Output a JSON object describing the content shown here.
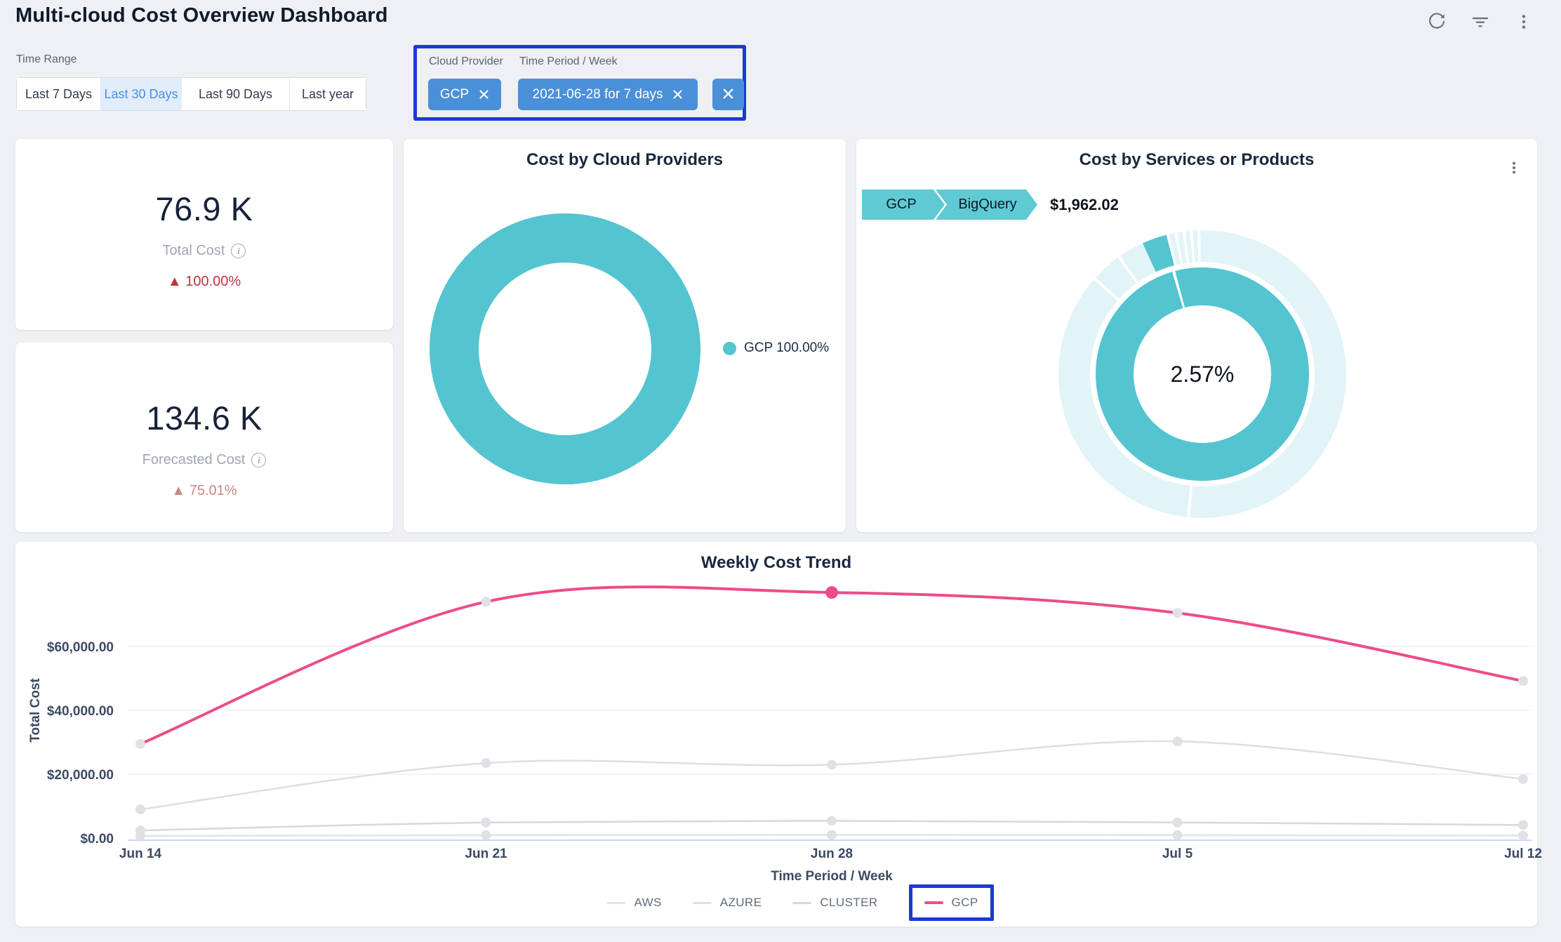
{
  "header": {
    "title": "Multi-cloud Cost Overview Dashboard",
    "actions": [
      "refresh",
      "filter",
      "more"
    ]
  },
  "filters": {
    "time_range": {
      "label": "Time Range",
      "options": [
        "Last 7 Days",
        "Last 30 Days",
        "Last 90 Days",
        "Last year"
      ],
      "selected": "Last 30 Days"
    },
    "cloud_provider": {
      "label": "Cloud Provider",
      "value": "GCP"
    },
    "time_period": {
      "label": "Time Period / Week",
      "value": "2021-06-28 for 7 days"
    }
  },
  "annotations": {
    "color": "#1b3ad6",
    "boxes": [
      "pinned-filters",
      "gcp-legend-item"
    ]
  },
  "kpis": [
    {
      "value": "76.9 K",
      "label": "Total Cost",
      "delta": "▲ 100.00%",
      "direction": "up",
      "delta_color": "#c5303c"
    },
    {
      "value": "134.6 K",
      "label": "Forecasted Cost",
      "delta": "▲ 75.01%",
      "direction": "up",
      "delta_color": "#c8897f"
    }
  ],
  "chart_data": [
    {
      "type": "pie",
      "title": "Cost by Cloud Providers",
      "categories": [
        "GCP"
      ],
      "values": [
        100.0
      ],
      "unit": "%",
      "legend_label": "GCP 100.00%",
      "legend_position": "right",
      "color": "#54c4d0",
      "donut": true
    },
    {
      "type": "pie",
      "variant": "sunburst",
      "title": "Cost by Services or Products",
      "breadcrumb": [
        "GCP",
        "BigQuery"
      ],
      "selected_service": "BigQuery",
      "selected_cost": "$1,962.02",
      "center_label": "2.57%",
      "selected_share_pct": 2.57,
      "colors": {
        "highlight": "#54c4d0",
        "rest": "#e2f4f7",
        "gap": "#ffffff"
      },
      "outer_segments": [
        [
          0,
          185,
          "rest"
        ],
        [
          185,
          186.2,
          "gap"
        ],
        [
          186.2,
          311,
          "rest"
        ],
        [
          311,
          312.2,
          "gap"
        ],
        [
          312.2,
          324,
          "rest"
        ],
        [
          324,
          325.2,
          "gap"
        ],
        [
          325.2,
          335.5,
          "rest"
        ],
        [
          335.5,
          345.5,
          "hl"
        ],
        [
          345.5,
          346.7,
          "gap"
        ],
        [
          346.7,
          348.8,
          "rest"
        ],
        [
          348.8,
          350,
          "gap"
        ],
        [
          350,
          352,
          "rest"
        ],
        [
          352,
          353.2,
          "gap"
        ],
        [
          353.2,
          355,
          "rest"
        ],
        [
          355,
          356.2,
          "gap"
        ],
        [
          356.2,
          358,
          "rest"
        ],
        [
          358,
          359.2,
          "gap"
        ],
        [
          359.2,
          360,
          "rest"
        ]
      ],
      "inner_segments": [
        [
          0,
          343.6,
          "hl"
        ],
        [
          343.6,
          345.2,
          "gap"
        ],
        [
          345.2,
          360,
          "hl"
        ]
      ]
    },
    {
      "type": "line",
      "title": "Weekly Cost Trend",
      "xlabel": "Time Period / Week",
      "ylabel": "Total Cost",
      "categories": [
        "Jun 14",
        "Jun 21",
        "Jun 28",
        "Jul 5",
        "Jul 12"
      ],
      "yticks": [
        "$0.00",
        "$20,000.00",
        "$40,000.00",
        "$60,000.00"
      ],
      "ylim": [
        0,
        80000
      ],
      "grid": true,
      "legend_position": "bottom",
      "series": [
        {
          "name": "AWS",
          "color": "#e2e4e8",
          "width": 2.5,
          "values": [
            700,
            900,
            1000,
            900,
            800
          ]
        },
        {
          "name": "AZURE",
          "color": "#dcdfe3",
          "width": 2.5,
          "values": [
            9000,
            23500,
            23000,
            30300,
            18500
          ]
        },
        {
          "name": "CLUSTER",
          "color": "#d5d8dd",
          "width": 2.5,
          "values": [
            2400,
            4900,
            5400,
            4900,
            4100
          ]
        },
        {
          "name": "GCP",
          "color": "#ec4c8b",
          "width": 4,
          "values": [
            29500,
            74000,
            76900,
            70500,
            49200
          ]
        }
      ],
      "highlight": {
        "series": "GCP",
        "category": "Jun 28"
      },
      "dot_color": "#dfe1e6"
    }
  ]
}
